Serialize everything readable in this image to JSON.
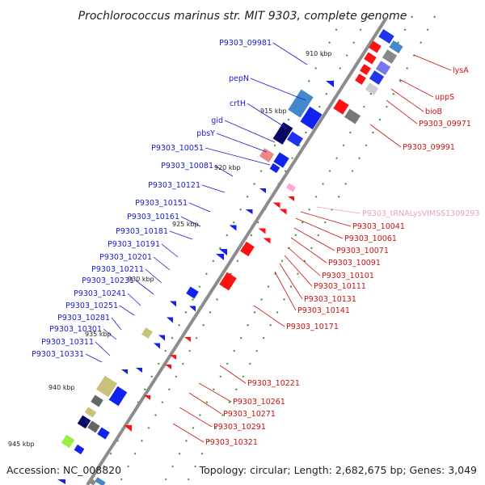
{
  "title": "Prochlorococcus marinus str. MIT 9303, complete genome",
  "footer": {
    "accession": "Accession: NC_008820",
    "summary": "Topology: circular; Length: 2,682,675 bp; Genes: 3,049"
  },
  "colors": {
    "backbone": "#8c8c8c",
    "left_label": "#1a1acc",
    "right_label": "#cc1111",
    "trna_label": "#e6a0c8",
    "tick": "#1e8a1e"
  },
  "kbp_ticks": [
    "910 kbp",
    "915 kbp",
    "920 kbp",
    "925 kbp",
    "930 kbp",
    "935 kbp",
    "940 kbp",
    "945 kbp"
  ],
  "left_labels": [
    "P9303_09981",
    "pepN",
    "crtH",
    "gid",
    "pbsY",
    "P9303_10051",
    "P9303_10081",
    "P9303_10121",
    "P9303_10151",
    "P9303_10161",
    "P9303_10181",
    "P9303_10191",
    "P9303_10201",
    "P9303_10211",
    "P9303_10231",
    "P9303_10241",
    "P9303_10251",
    "P9303_10281",
    "P9303_10301",
    "P9303_10311",
    "P9303_10331"
  ],
  "right_labels": [
    "lysA",
    "uppS",
    "bioB",
    "P9303_09971",
    "P9303_09991",
    "P9303_tRNALysVIMSS1309293",
    "P9303_10041",
    "P9303_10061",
    "P9303_10071",
    "P9303_10091",
    "P9303_10101",
    "P9303_10111",
    "P9303_10131",
    "P9303_10141",
    "P9303_10171",
    "P9303_10221",
    "P9303_10261",
    "P9303_10271",
    "P9303_10291",
    "P9303_10321"
  ]
}
